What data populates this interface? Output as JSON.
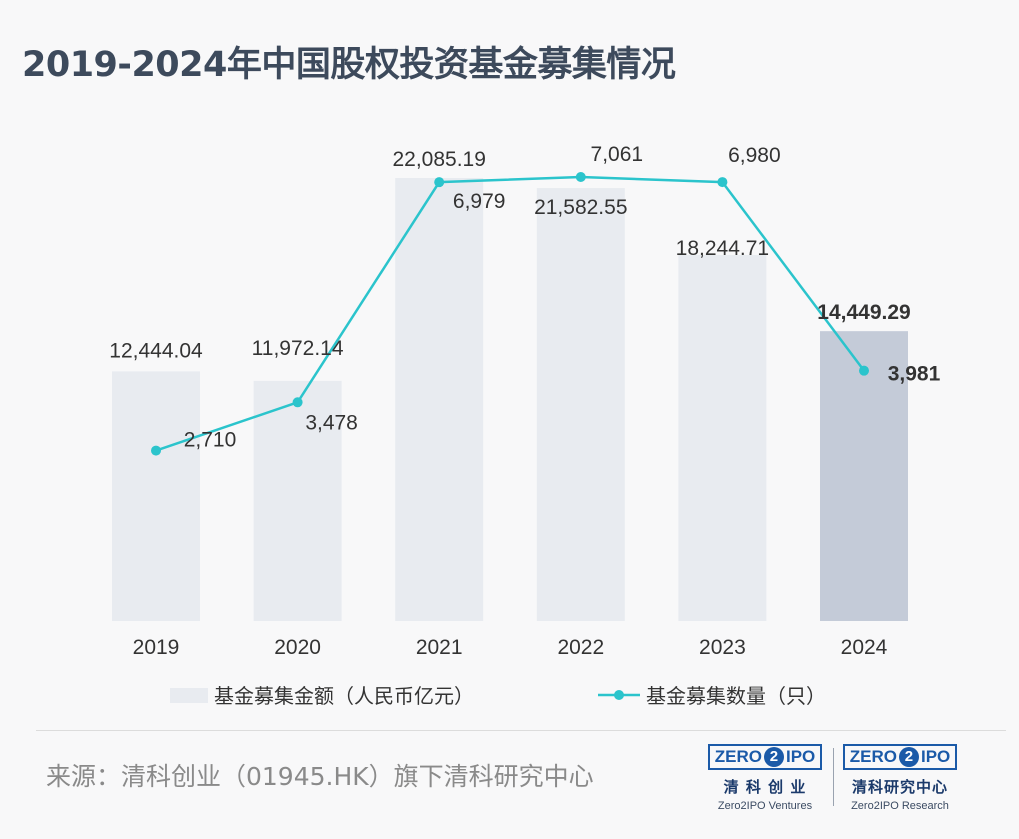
{
  "title": "2019-2024年中国股权投资基金募集情况",
  "source": "来源：清科创业（01945.HK）旗下清科研究中心",
  "logos": [
    {
      "mark_left": "ZERO",
      "mark_two": "2",
      "mark_right": "IPO",
      "cn": "清 科 创 业",
      "en": "Zero2IPO Ventures"
    },
    {
      "mark_left": "ZERO",
      "mark_two": "2",
      "mark_right": "IPO",
      "cn": "清科研究中心",
      "en": "Zero2IPO Research"
    }
  ],
  "chart_data": {
    "type": "bar",
    "categories": [
      "2019",
      "2020",
      "2021",
      "2022",
      "2023",
      "2024"
    ],
    "series": [
      {
        "name": "基金募集金额（人民币亿元）",
        "type": "bar",
        "values": [
          12444.04,
          11972.14,
          22085.19,
          21582.55,
          18244.71,
          14449.29
        ],
        "labels": [
          "12,444.04",
          "11,972.14",
          "22,085.19",
          "21,582.55",
          "18,244.71",
          "14,449.29"
        ],
        "color": "#e8ebf0",
        "highlight_color": "#c4cbd8"
      },
      {
        "name": "基金募集数量（只）",
        "type": "line",
        "values": [
          2710,
          3478,
          6979,
          7061,
          6980,
          3981
        ],
        "labels": [
          "2,710",
          "3,478",
          "6,979",
          "7,061",
          "6,980",
          "3,981"
        ],
        "color": "#2bc4cc"
      }
    ],
    "highlight_index": 5,
    "ylim_bar": [
      0,
      22085.19
    ],
    "ylim_line": [
      0,
      7061
    ],
    "grid": false,
    "legend_position": "bottom"
  }
}
